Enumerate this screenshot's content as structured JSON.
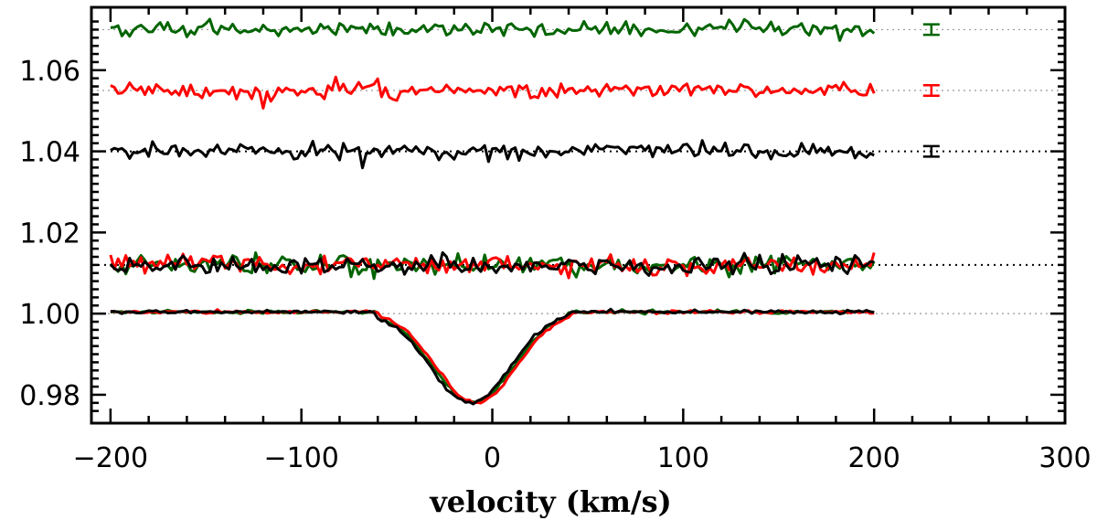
{
  "chart_data": {
    "type": "line",
    "title": "",
    "xlabel": "velocity (km/s)",
    "ylabel": "",
    "xlim": [
      -210,
      300
    ],
    "ylim": [
      0.973,
      1.0755
    ],
    "x_ticks": [
      -200,
      -100,
      0,
      100,
      200,
      300
    ],
    "x_tick_labels": [
      "−200",
      "−100",
      "0",
      "100",
      "200",
      "300"
    ],
    "y_ticks": [
      0.98,
      1.0,
      1.02,
      1.04,
      1.06
    ],
    "y_tick_labels": [
      "0.98",
      "1.00",
      "1.02",
      "1.04",
      "1.06"
    ],
    "colors": {
      "green": "#006400",
      "red": "#ff0000",
      "black": "#000000",
      "ref": "#999999"
    },
    "reference_lines": [
      {
        "name": "green-offset",
        "y": 1.07,
        "color": "#999999"
      },
      {
        "name": "red-offset",
        "y": 1.055,
        "color": "#999999"
      },
      {
        "name": "black-offset",
        "y": 1.04,
        "color": "#000000"
      },
      {
        "name": "residual-offset",
        "y": 1.012,
        "color": "#000000"
      },
      {
        "name": "continuum",
        "y": 1.0,
        "color": "#999999"
      }
    ],
    "profile": {
      "description": "Gaussian-like absorption profile in stacked LSD spectra",
      "continuum": 1.0005,
      "center_velocity": -10,
      "depth": 0.0225,
      "half_width": 50,
      "range": [
        -200,
        200
      ]
    },
    "series": [
      {
        "name": "profile-green",
        "color": "#006400",
        "kind": "profile",
        "offset": 0.0,
        "shift": 0,
        "noise": 0.0002,
        "seed": 11
      },
      {
        "name": "profile-red",
        "color": "#ff0000",
        "kind": "profile",
        "offset": 0.0,
        "shift": 1.5,
        "noise": 0.0002,
        "seed": 12
      },
      {
        "name": "profile-black",
        "color": "#000000",
        "kind": "profile",
        "offset": 0.0,
        "shift": -1.5,
        "noise": 0.0002,
        "seed": 13
      },
      {
        "name": "residual-green",
        "color": "#006400",
        "kind": "noise",
        "offset": 1.012,
        "noise": 0.0012,
        "seed": 21
      },
      {
        "name": "residual-red",
        "color": "#ff0000",
        "kind": "noise",
        "offset": 1.012,
        "noise": 0.0012,
        "seed": 22
      },
      {
        "name": "residual-black",
        "color": "#000000",
        "kind": "noise",
        "offset": 1.012,
        "noise": 0.0012,
        "seed": 23
      },
      {
        "name": "stokes-black",
        "color": "#000000",
        "kind": "noise",
        "offset": 1.04,
        "noise": 0.001,
        "seed": 31
      },
      {
        "name": "stokes-red",
        "color": "#ff0000",
        "kind": "noise",
        "offset": 1.055,
        "noise": 0.001,
        "seed": 32
      },
      {
        "name": "stokes-green",
        "color": "#006400",
        "kind": "noise",
        "offset": 1.07,
        "noise": 0.001,
        "seed": 33
      }
    ],
    "error_bars": [
      {
        "name": "errorbar-green",
        "x": 230,
        "y": 1.07,
        "err": 0.0013,
        "color": "#006400"
      },
      {
        "name": "errorbar-red",
        "x": 230,
        "y": 1.055,
        "err": 0.0013,
        "color": "#ff0000"
      },
      {
        "name": "errorbar-black",
        "x": 230,
        "y": 1.04,
        "err": 0.0013,
        "color": "#000000"
      }
    ]
  }
}
